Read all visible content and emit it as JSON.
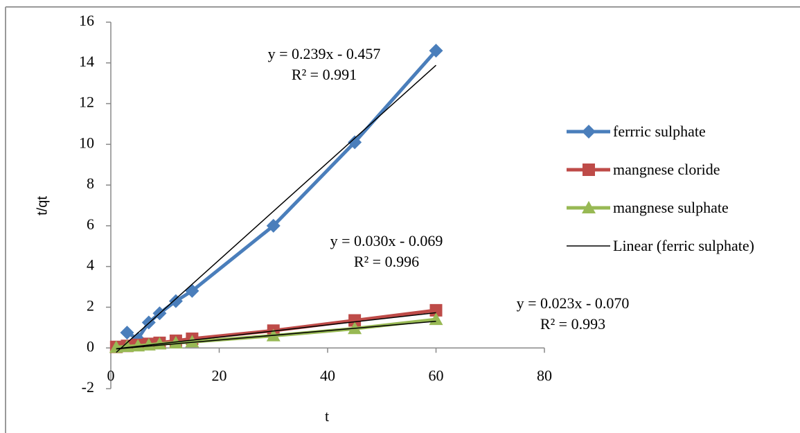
{
  "chart_data": {
    "type": "scatter",
    "xlabel": "t",
    "ylabel": "t/qt",
    "xlim": [
      0,
      80
    ],
    "xticks": [
      0,
      20,
      40,
      60,
      80
    ],
    "ylim": [
      -2,
      16
    ],
    "yticks": [
      -2,
      0,
      2,
      4,
      6,
      8,
      10,
      12,
      14,
      16
    ],
    "series": [
      {
        "name": "ferrric sulphate",
        "color": "#4a7ebb",
        "marker": "diamond",
        "x": [
          3,
          5,
          7,
          9,
          12,
          15,
          30,
          45,
          60
        ],
        "values": [
          0.75,
          0.45,
          1.25,
          1.7,
          2.3,
          2.8,
          6.0,
          10.1,
          14.6
        ]
      },
      {
        "name": "mangnese cloride",
        "color": "#be4b48",
        "marker": "square",
        "x": [
          1,
          3,
          5,
          7,
          9,
          12,
          15,
          30,
          45,
          60
        ],
        "values": [
          0.05,
          0.1,
          0.15,
          0.2,
          0.25,
          0.35,
          0.45,
          0.85,
          1.35,
          1.85
        ]
      },
      {
        "name": "mangnese sulphate",
        "color": "#98b954",
        "marker": "triangle",
        "x": [
          1,
          3,
          5,
          7,
          9,
          12,
          15,
          30,
          45,
          60
        ],
        "values": [
          0.03,
          0.07,
          0.1,
          0.15,
          0.2,
          0.25,
          0.3,
          0.6,
          0.95,
          1.4
        ]
      }
    ],
    "trendlines": [
      {
        "name": "Linear (ferric sulphate)",
        "color": "#000000",
        "x": [
          1,
          60
        ],
        "values": [
          -0.218,
          13.883
        ]
      },
      {
        "color": "#000000",
        "x": [
          1,
          60
        ],
        "values": [
          -0.039,
          1.731
        ]
      },
      {
        "color": "#000000",
        "x": [
          1,
          60
        ],
        "values": [
          -0.047,
          1.31
        ]
      }
    ],
    "annotations": [
      [
        "y = 0.239x - 0.457",
        "R² = 0.991"
      ],
      [
        "y = 0.030x - 0.069",
        "R² = 0.996"
      ],
      [
        "y = 0.023x - 0.070",
        "R² = 0.993"
      ]
    ]
  }
}
